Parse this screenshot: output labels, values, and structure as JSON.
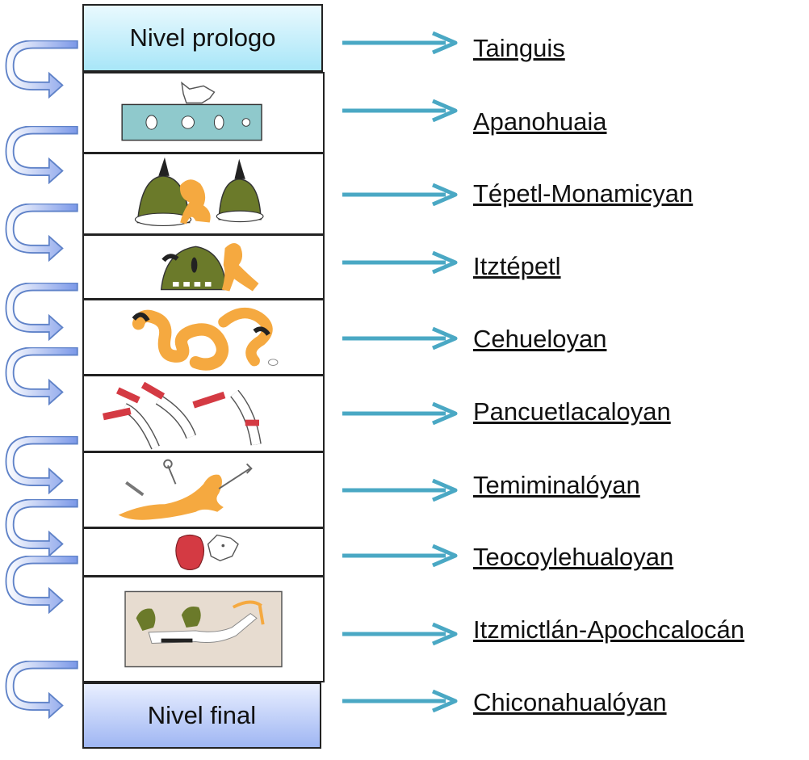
{
  "levels": {
    "prologo": "Nivel prologo",
    "final": "Nivel final"
  },
  "labels": [
    "Tainguis",
    "Apanohuaia",
    "Tépetl-Monamicyan",
    "Itztépetl",
    "Cehueloyan",
    "Pancuetlacaloyan",
    "Temiminalóyan",
    "Teocoylehualoyan",
    "Itzmictlán-Apochcalocán",
    "Chiconahualóyan"
  ],
  "glyphs": [
    "rabbit-water-glyph",
    "hills-figure-glyph",
    "obsidian-hill-glyph",
    "wind-swirl-glyph",
    "banners-glyph",
    "arrows-figure-glyph",
    "pot-jaguar-glyph",
    "ritual-scene-glyph"
  ],
  "colors": {
    "arrow": "#4aa8c4",
    "curl_start": "#ffffff",
    "curl_end": "#7b98e8",
    "curl_stroke": "#5f82c8",
    "prologo_fill": "#a8e6f8",
    "final_fill": "#9fb6f3",
    "figure_orange": "#f5a940",
    "water_blue": "#8fc9cc",
    "hill_green": "#6b7a2a",
    "banner_red": "#d43a43"
  }
}
